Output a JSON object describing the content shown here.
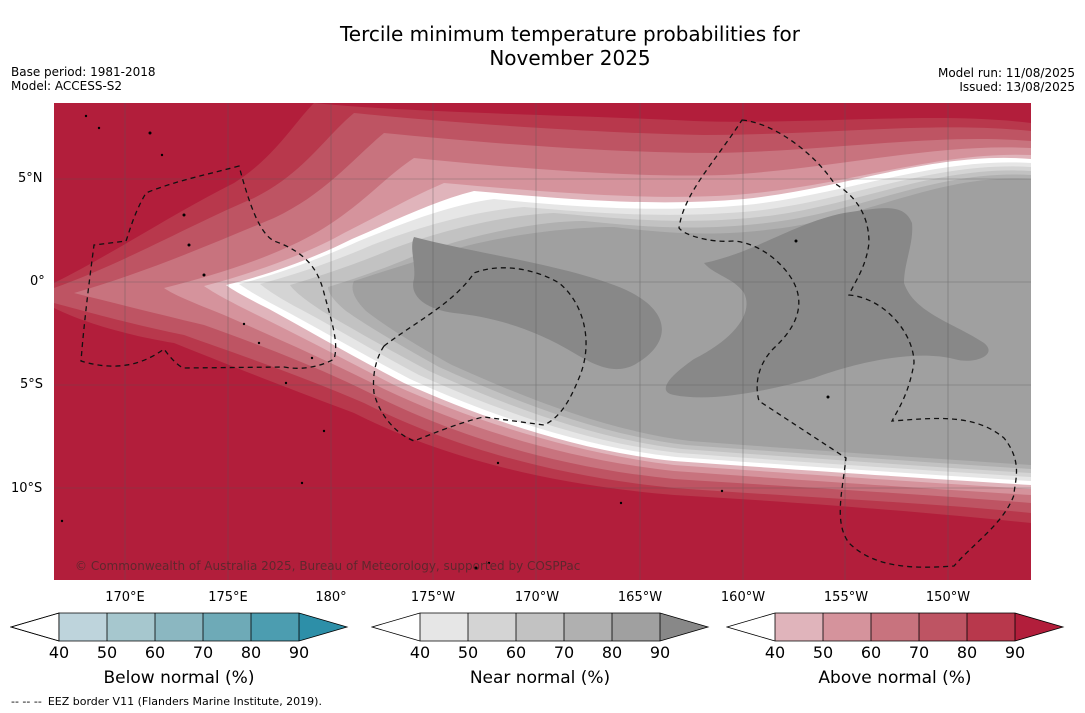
{
  "header": {
    "title_line1": "Tercile minimum temperature probabilities for",
    "title_line2": "November 2025",
    "base_period": "Base period: 1981-2018",
    "model": "Model: ACCESS-S2",
    "model_run": "Model run: 11/08/2025",
    "issued": "Issued: 13/08/2025"
  },
  "map": {
    "copyright": "© Commonwealth of Australia 2025, Bureau of Meteorology, supported by COSPPac",
    "lat_labels": [
      "5°N",
      "0°",
      "5°S",
      "10°S"
    ],
    "lon_labels": [
      "170°E",
      "175°E",
      "180°",
      "175°W",
      "170°W",
      "165°W",
      "160°W",
      "155°W",
      "150°W"
    ],
    "colors": {
      "above": [
        "#e0b4bb",
        "#d5939c",
        "#c8737e",
        "#be5463",
        "#b8384c",
        "#b21e3b"
      ],
      "near": [
        "#e6e6e6",
        "#d4d4d4",
        "#c2c2c2",
        "#b0b0b0",
        "#a0a0a0",
        "#888888"
      ],
      "below": [
        "#bed4dc",
        "#a6c7ce",
        "#8bb7c1",
        "#6eaab7",
        "#4c9db0",
        "#2d8fa8"
      ]
    }
  },
  "legend": {
    "ticks": [
      "40",
      "50",
      "60",
      "70",
      "80",
      "90"
    ],
    "below": {
      "title": "Below normal (%)",
      "colors": [
        "#bed4dc",
        "#a6c7ce",
        "#8bb7c1",
        "#6eaab7",
        "#4c9db0",
        "#2d8fa8"
      ]
    },
    "near": {
      "title": "Near normal (%)",
      "colors": [
        "#e6e6e6",
        "#d4d4d4",
        "#c2c2c2",
        "#b0b0b0",
        "#a0a0a0",
        "#888888"
      ]
    },
    "above": {
      "title": "Above normal (%)",
      "colors": [
        "#e0b4bb",
        "#d5939c",
        "#c8737e",
        "#be5463",
        "#b8384c",
        "#b21e3b"
      ]
    }
  },
  "footer": {
    "line_symbol": "-- -- --",
    "text": "EEZ border V11 (Flanders Marine Institute, 2019)."
  }
}
